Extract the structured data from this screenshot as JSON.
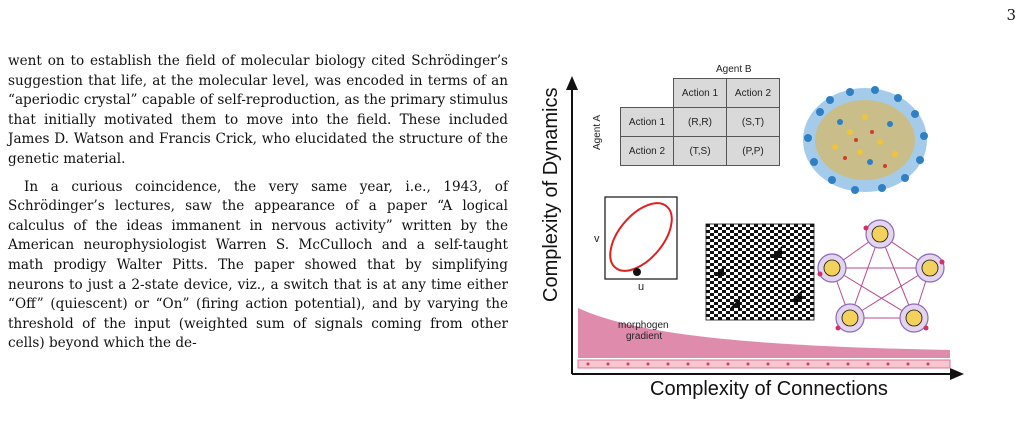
{
  "page": {
    "number": "3"
  },
  "text": {
    "para1": "went on to establish the field of molecular biology cited Schrödinger’s suggestion that life, at the molecular level, was encoded in terms of an “aperiodic crystal” capable of self-reproduction, as the primary stimulus that initially motivated them to move into the field. These included James D. Watson and Francis Crick, who elucidated the structure of the genetic material.",
    "para2": "In a curious coincidence, the very same year, i.e., 1943, of Schrödinger’s lectures, saw the appearance of a paper “A logical calculus of the ideas immanent in nervous activity” written by the American neurophysiologist Warren S. McCulloch and a self-taught math prodigy Walter Pitts. The paper showed that by simplifying neurons to just a 2-state device, viz., a switch that is at any time either “Off” (quiescent) or “On” (firing action potential), and by varying the threshold of the input (weighted sum of signals coming from other cells) beyond which the de-"
  },
  "figure": {
    "y_axis": "Complexity of Dynamics",
    "x_axis": "Complexity of Connections",
    "payoff": {
      "agent_b": "Agent B",
      "agent_a": "Agent A",
      "col1": "Action 1",
      "col2": "Action 2",
      "row1": "Action 1",
      "row2": "Action 2",
      "c11": "(R,R)",
      "c12": "(S,T)",
      "c21": "(T,S)",
      "c22": "(P,P)"
    },
    "phase": {
      "v_label": "v",
      "u_label": "u"
    },
    "morphogen": {
      "label1": "morphogen",
      "label2": "gradient"
    },
    "colors": {
      "gradient_pink": "#d9789e",
      "orbit_red": "#e02020",
      "node_yellow": "#f2d15c",
      "network_blue": "#3a8fd0"
    }
  }
}
